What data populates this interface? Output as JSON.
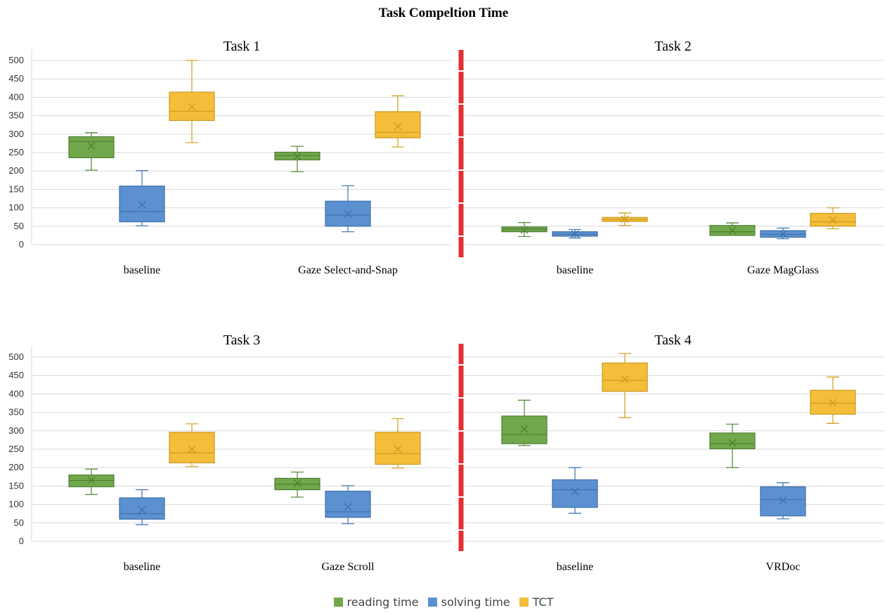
{
  "title": "Task Compeltion Time",
  "colors": {
    "reading time": {
      "fill": "#70a84b",
      "stroke": "#4f7d33",
      "line": "#5e8f3e"
    },
    "solving time": {
      "fill": "#5b91d0",
      "stroke": "#3e6fa8",
      "line": "#4a7cb8"
    },
    "TCT": {
      "fill": "#f4be3a",
      "stroke": "#c99a1f",
      "line": "#d4a52a"
    },
    "divider": "#e03030",
    "grid": "#d9d9d9"
  },
  "legend": [
    {
      "label": "reading time",
      "color": "#70a84b"
    },
    {
      "label": "solving time",
      "color": "#5b91d0"
    },
    {
      "label": "TCT",
      "color": "#f4be3a"
    }
  ],
  "chart_data": [
    {
      "type": "box",
      "title": "Task 1",
      "ylim": [
        0,
        500
      ],
      "yticks": [
        0,
        50,
        100,
        150,
        200,
        250,
        300,
        350,
        400,
        450,
        500
      ],
      "categories": [
        "baseline",
        "Gaze Select-and-Snap"
      ],
      "series": [
        {
          "name": "reading time",
          "boxes": [
            {
              "min": 202,
              "q1": 236,
              "median": 280,
              "q3": 293,
              "max": 304,
              "mean": 268
            },
            {
              "min": 198,
              "q1": 230,
              "median": 242,
              "q3": 251,
              "max": 267,
              "mean": 240
            }
          ]
        },
        {
          "name": "solving time",
          "boxes": [
            {
              "min": 51,
              "q1": 62,
              "median": 90,
              "q3": 159,
              "max": 201,
              "mean": 108
            },
            {
              "min": 35,
              "q1": 50,
              "median": 80,
              "q3": 118,
              "max": 160,
              "mean": 83
            }
          ]
        },
        {
          "name": "TCT",
          "boxes": [
            {
              "min": 277,
              "q1": 337,
              "median": 362,
              "q3": 414,
              "max": 500,
              "mean": 374
            },
            {
              "min": 265,
              "q1": 290,
              "median": 305,
              "q3": 361,
              "max": 404,
              "mean": 321
            }
          ]
        }
      ]
    },
    {
      "type": "box",
      "title": "Task 2",
      "ylim": [
        0,
        500
      ],
      "yticks": [
        0,
        50,
        100,
        150,
        200,
        250,
        300,
        350,
        400,
        450,
        500
      ],
      "categories": [
        "baseline",
        "Gaze MagGlass"
      ],
      "series": [
        {
          "name": "reading time",
          "boxes": [
            {
              "min": 22,
              "q1": 35,
              "median": 42,
              "q3": 48,
              "max": 60,
              "mean": 40
            },
            {
              "min": 25,
              "q1": 25,
              "median": 35,
              "q3": 52,
              "max": 59,
              "mean": 38
            }
          ]
        },
        {
          "name": "solving time",
          "boxes": [
            {
              "min": 18,
              "q1": 23,
              "median": 28,
              "q3": 35,
              "max": 41,
              "mean": 29
            },
            {
              "min": 16,
              "q1": 20,
              "median": 28,
              "q3": 38,
              "max": 45,
              "mean": 29
            }
          ]
        },
        {
          "name": "TCT",
          "boxes": [
            {
              "min": 52,
              "q1": 63,
              "median": 68,
              "q3": 74,
              "max": 86,
              "mean": 69
            },
            {
              "min": 43,
              "q1": 50,
              "median": 62,
              "q3": 85,
              "max": 100,
              "mean": 67
            }
          ]
        }
      ]
    },
    {
      "type": "box",
      "title": "Task 3",
      "ylim": [
        0,
        500
      ],
      "yticks": [
        0,
        50,
        100,
        150,
        200,
        250,
        300,
        350,
        400,
        450,
        500
      ],
      "categories": [
        "baseline",
        "Gaze Scroll"
      ],
      "series": [
        {
          "name": "reading time",
          "boxes": [
            {
              "min": 127,
              "q1": 148,
              "median": 165,
              "q3": 180,
              "max": 196,
              "mean": 165
            },
            {
              "min": 120,
              "q1": 140,
              "median": 155,
              "q3": 171,
              "max": 188,
              "mean": 158
            }
          ]
        },
        {
          "name": "solving time",
          "boxes": [
            {
              "min": 45,
              "q1": 60,
              "median": 75,
              "q3": 118,
              "max": 140,
              "mean": 85
            },
            {
              "min": 48,
              "q1": 65,
              "median": 80,
              "q3": 136,
              "max": 151,
              "mean": 93
            }
          ]
        },
        {
          "name": "TCT",
          "boxes": [
            {
              "min": 203,
              "q1": 213,
              "median": 240,
              "q3": 296,
              "max": 319,
              "mean": 250
            },
            {
              "min": 199,
              "q1": 209,
              "median": 238,
              "q3": 296,
              "max": 333,
              "mean": 250
            }
          ]
        }
      ]
    },
    {
      "type": "box",
      "title": "Task 4",
      "ylim": [
        0,
        500
      ],
      "yticks": [
        0,
        50,
        100,
        150,
        200,
        250,
        300,
        350,
        400,
        450,
        500
      ],
      "categories": [
        "baseline",
        "VRDoc"
      ],
      "series": [
        {
          "name": "reading time",
          "boxes": [
            {
              "min": 260,
              "q1": 265,
              "median": 290,
              "q3": 340,
              "max": 383,
              "mean": 305
            },
            {
              "min": 200,
              "q1": 251,
              "median": 265,
              "q3": 294,
              "max": 318,
              "mean": 267
            }
          ]
        },
        {
          "name": "solving time",
          "boxes": [
            {
              "min": 76,
              "q1": 92,
              "median": 140,
              "q3": 167,
              "max": 200,
              "mean": 135
            },
            {
              "min": 61,
              "q1": 69,
              "median": 113,
              "q3": 148,
              "max": 159,
              "mean": 111
            }
          ]
        },
        {
          "name": "TCT",
          "boxes": [
            {
              "min": 336,
              "q1": 407,
              "median": 437,
              "q3": 484,
              "max": 510,
              "mean": 440
            },
            {
              "min": 320,
              "q1": 345,
              "median": 375,
              "q3": 410,
              "max": 446,
              "mean": 376
            }
          ]
        }
      ]
    }
  ]
}
